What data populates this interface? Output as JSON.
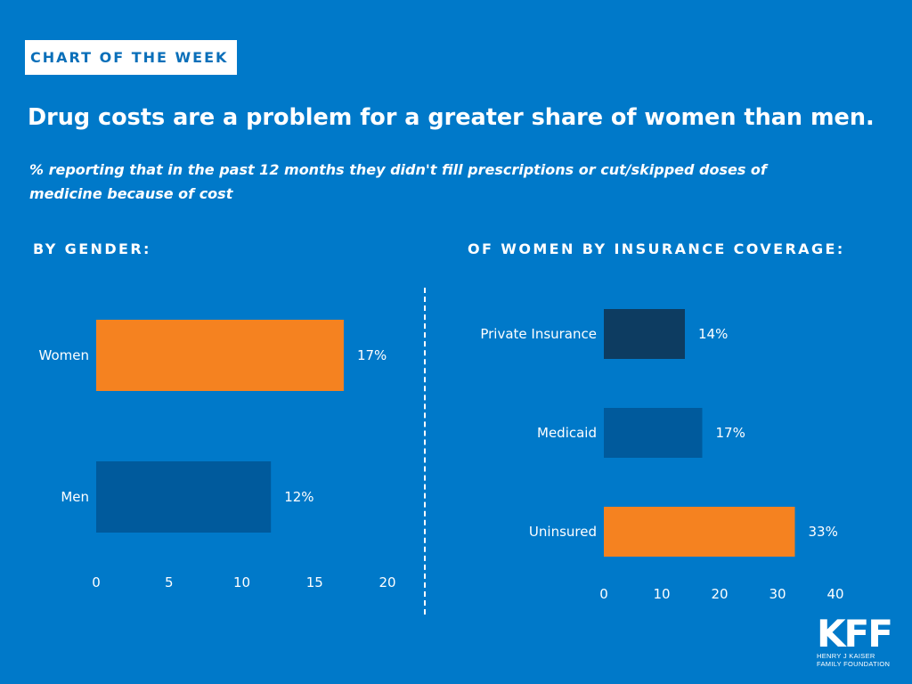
{
  "badge": "CHART OF THE WEEK",
  "title": "Drug costs are a problem for a greater share of women than men.",
  "subtitle": "% reporting that in the past 12 months they didn't fill prescriptions or cut/skipped doses of medicine because of cost",
  "colors": {
    "background": "#0079c9",
    "orange": "#f58220",
    "mid_blue": "#005a9c",
    "dark_blue": "#0d3c61"
  },
  "logo": {
    "mark": "KFF",
    "line1": "HENRY J KAISER",
    "line2": "FAMILY FOUNDATION"
  },
  "chart_data": [
    {
      "type": "bar",
      "orientation": "horizontal",
      "title": "BY GENDER:",
      "categories": [
        "Women",
        "Men"
      ],
      "values": [
        17,
        12
      ],
      "value_labels": [
        "17%",
        "12%"
      ],
      "bar_colors": [
        "#f58220",
        "#005a9c"
      ],
      "xlim": [
        0,
        20
      ],
      "ticks": [
        0,
        5,
        10,
        15,
        20
      ],
      "grid": false
    },
    {
      "type": "bar",
      "orientation": "horizontal",
      "title": "OF WOMEN BY INSURANCE COVERAGE:",
      "categories": [
        "Private Insurance",
        "Medicaid",
        "Uninsured"
      ],
      "values": [
        14,
        17,
        33
      ],
      "value_labels": [
        "14%",
        "17%",
        "33%"
      ],
      "bar_colors": [
        "#0d3c61",
        "#005a9c",
        "#f58220"
      ],
      "xlim": [
        0,
        40
      ],
      "ticks": [
        0,
        10,
        20,
        30,
        40
      ],
      "grid": false
    }
  ]
}
